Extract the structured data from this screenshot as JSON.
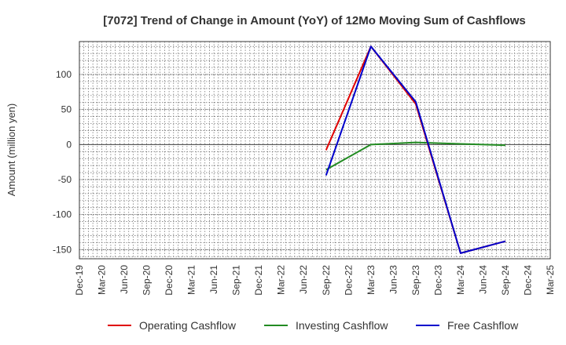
{
  "chart_data": {
    "type": "line",
    "title": "[7072]  Trend of Change in Amount (YoY) of 12Mo Moving Sum of Cashflows",
    "xlabel": "",
    "ylabel": "Amount (million yen)",
    "ylim": [
      -163,
      147
    ],
    "yticks": [
      100,
      50,
      0,
      -50,
      -100,
      -150
    ],
    "categories": [
      "Dec-19",
      "Mar-20",
      "Jun-20",
      "Sep-20",
      "Dec-20",
      "Mar-21",
      "Jun-21",
      "Sep-21",
      "Dec-21",
      "Mar-22",
      "Jun-22",
      "Sep-22",
      "Dec-22",
      "Mar-23",
      "Jun-23",
      "Sep-23",
      "Dec-23",
      "Mar-24",
      "Jun-24",
      "Sep-24",
      "Dec-24",
      "Mar-25"
    ],
    "grid": true,
    "legend_position": "bottom",
    "series": [
      {
        "name": "Operating Cashflow",
        "color": "#e00000",
        "values": [
          null,
          null,
          null,
          null,
          null,
          null,
          null,
          null,
          null,
          null,
          null,
          -8,
          null,
          140,
          null,
          58,
          null,
          -155,
          null,
          -138,
          null,
          null
        ]
      },
      {
        "name": "Investing Cashflow",
        "color": "#228b22",
        "values": [
          null,
          null,
          null,
          null,
          null,
          null,
          null,
          null,
          null,
          null,
          null,
          -36,
          null,
          0,
          null,
          3,
          null,
          1,
          null,
          -1,
          null,
          null
        ]
      },
      {
        "name": "Free Cashflow",
        "color": "#0000cc",
        "values": [
          null,
          null,
          null,
          null,
          null,
          null,
          null,
          null,
          null,
          null,
          null,
          -44,
          null,
          140,
          null,
          61,
          null,
          -155,
          null,
          -138,
          null,
          null
        ]
      }
    ]
  }
}
